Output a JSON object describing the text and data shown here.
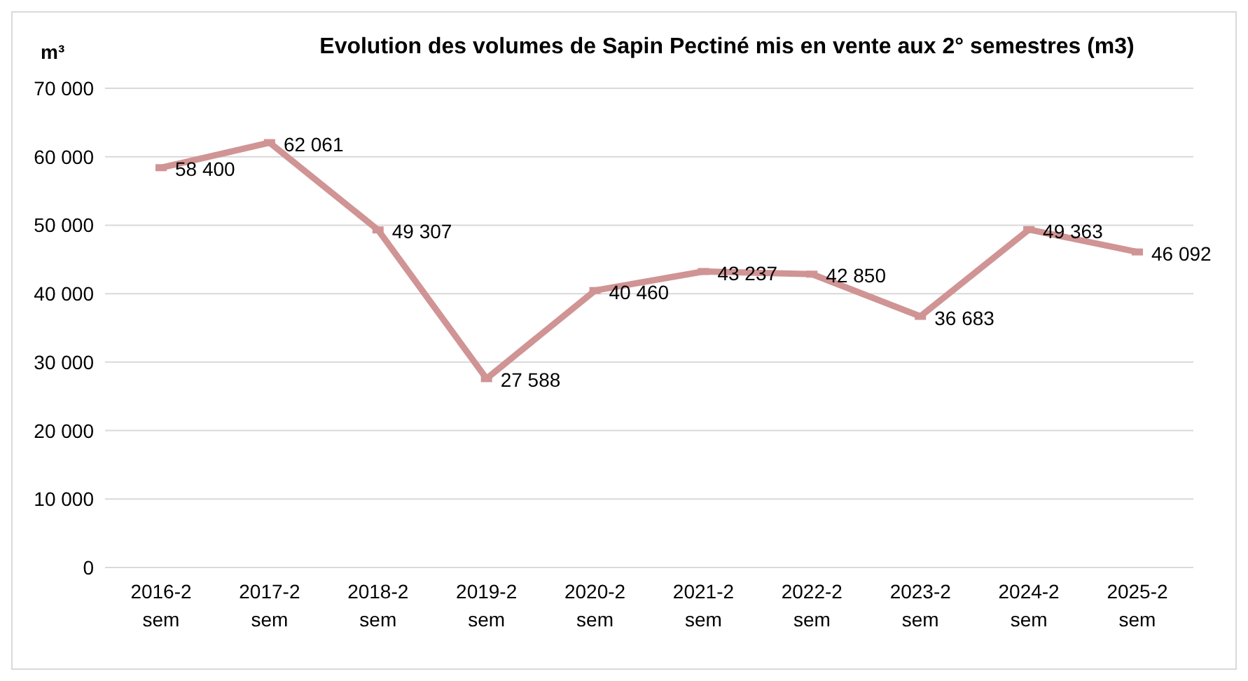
{
  "chart_data": {
    "type": "line",
    "title": "Evolution des volumes de Sapin Pectiné mis en vente aux 2° semestres (m3)",
    "ylabel": "m³",
    "categories": [
      "2016-2 sem",
      "2017-2 sem",
      "2018-2 sem",
      "2019-2 sem",
      "2020-2 sem",
      "2021-2 sem",
      "2022-2 sem",
      "2023-2 sem",
      "2024-2 sem",
      "2025-2 sem"
    ],
    "series": [
      {
        "color": "#d09494",
        "values": [
          58400,
          62061,
          49307,
          27588,
          40460,
          43237,
          42850,
          36683,
          49363,
          46092
        ],
        "value_labels": [
          "58 400",
          "62 061",
          "49 307",
          "27 588",
          "40 460",
          "43 237",
          "42 850",
          "36 683",
          "49 363",
          "46 092"
        ]
      }
    ],
    "ylim": [
      0,
      70000
    ],
    "yticks": [
      {
        "value": 0,
        "label": "0"
      },
      {
        "value": 10000,
        "label": "10 000"
      },
      {
        "value": 20000,
        "label": "20 000"
      },
      {
        "value": 30000,
        "label": "30 000"
      },
      {
        "value": 40000,
        "label": "40 000"
      },
      {
        "value": 50000,
        "label": "50 000"
      },
      {
        "value": 60000,
        "label": "60 000"
      },
      {
        "value": 70000,
        "label": "70 000"
      }
    ],
    "grid": "y",
    "legend": false,
    "marker": "square",
    "line_style": "solid"
  }
}
